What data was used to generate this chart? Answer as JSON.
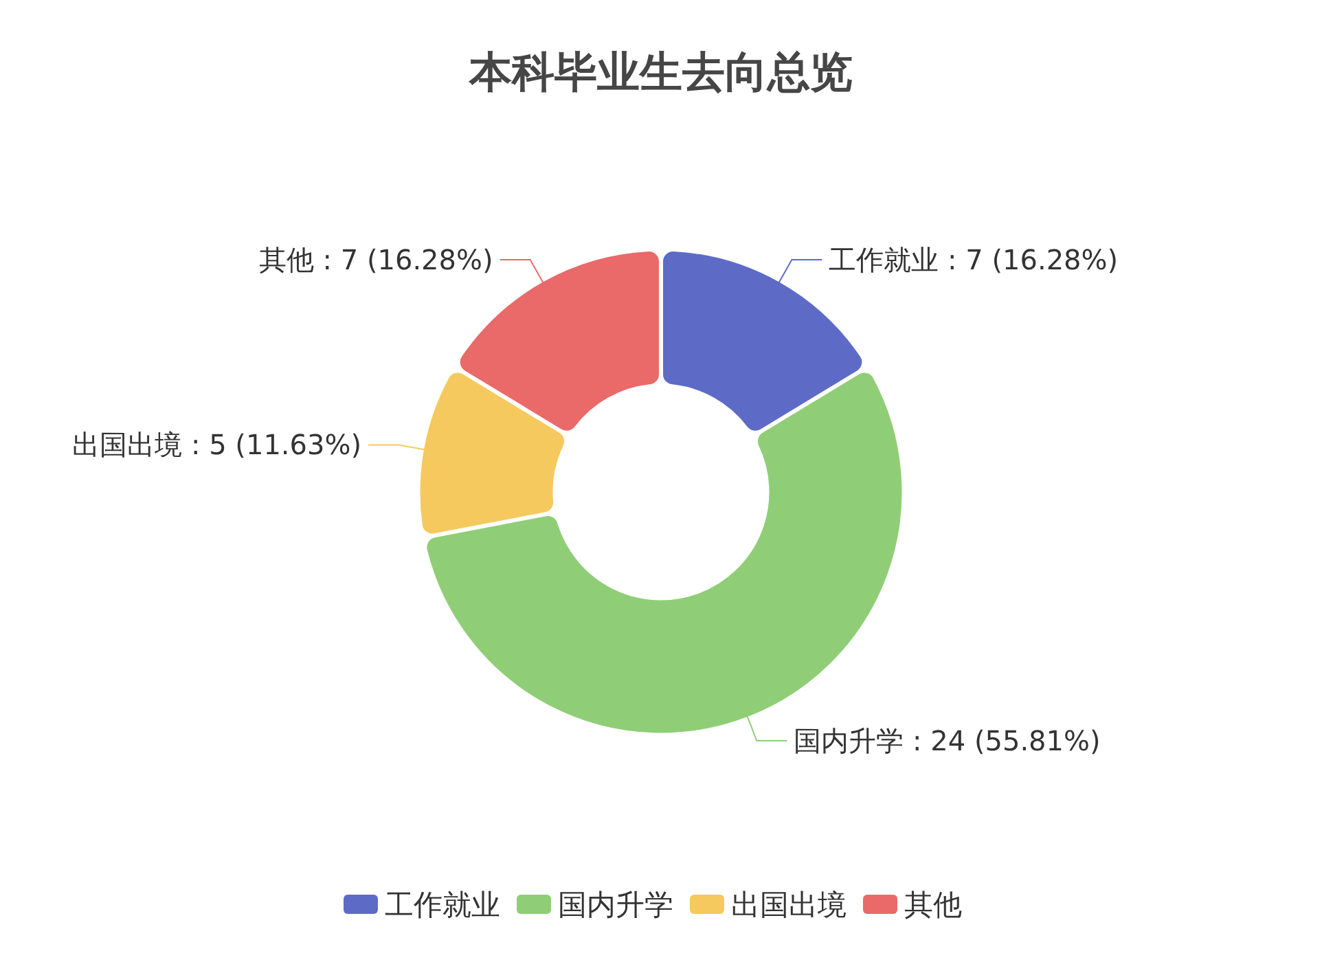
{
  "chart_data": {
    "type": "donut",
    "title": "本科毕业生去向总览",
    "categories": [
      "工作就业",
      "国内升学",
      "出国出境",
      "其他"
    ],
    "values": [
      7,
      24,
      5,
      7
    ],
    "value_labels": [
      ": 7 (16.28%)",
      ": 24 (55.81%)",
      ": 5 (11.63%)",
      ": 7 (16.28%)"
    ],
    "colors": [
      "#5d6bc7",
      "#8fce76",
      "#f5c95d",
      "#e96a69"
    ],
    "legend": "bottom"
  }
}
